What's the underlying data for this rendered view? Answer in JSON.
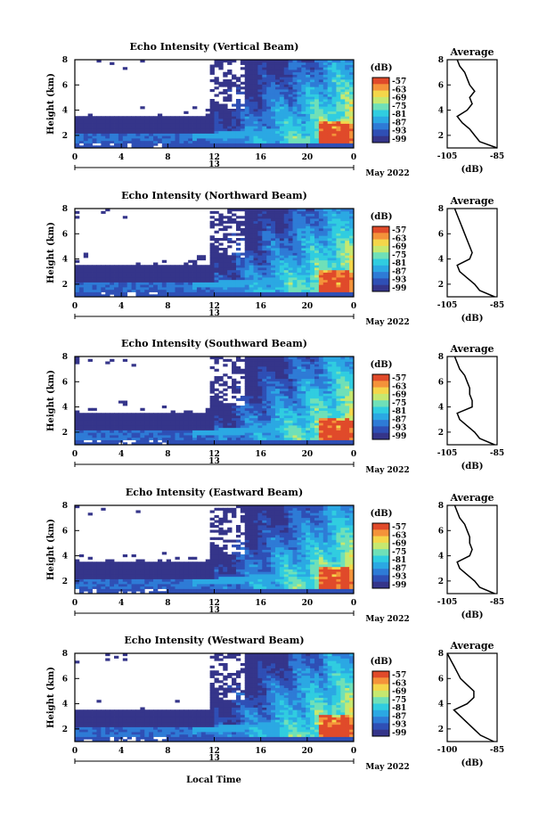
{
  "colors": {
    "scale": [
      "#35358a",
      "#2f4fb5",
      "#2e7bd6",
      "#2ba8e3",
      "#30cde0",
      "#6fe0b8",
      "#c6e870",
      "#f4d64a",
      "#f4933a",
      "#e04a2a"
    ],
    "missing": "#ffffff",
    "axis": "#000000"
  },
  "common": {
    "x_axis_label": "Local Time",
    "date_label": "May 2022",
    "day_label": "13",
    "ytick_labels": [
      "2",
      "4",
      "6",
      "8"
    ],
    "xtick_labels": [
      "0",
      "4",
      "8",
      "12",
      "16",
      "20",
      "0"
    ],
    "colorbar_unit": "(dB)",
    "colorbar_ticks": [
      "-57",
      "-63",
      "-69",
      "-75",
      "-81",
      "-87",
      "-93",
      "-99"
    ],
    "profile_title": "Average",
    "profile_xlabel": "(dB)",
    "ylabel": "Height (km)"
  },
  "chart_data": [
    {
      "type": "heatmap",
      "title": "Echo Intensity (Vertical Beam)",
      "xlabel": "",
      "ylabel": "Height (km)",
      "xlim_hours": [
        0,
        24
      ],
      "ylim_km": [
        1,
        8
      ],
      "zlim_db": [
        -99,
        -57
      ],
      "profile": {
        "type": "line",
        "xlim_db": [
          -105,
          -85
        ],
        "xtick_labels": [
          "-105",
          "-85"
        ],
        "height_km": [
          1.0,
          1.5,
          2.0,
          2.5,
          3.0,
          3.5,
          4.0,
          4.5,
          5.0,
          5.5,
          6.0,
          6.5,
          7.0,
          7.5,
          8.0
        ],
        "db": [
          -85,
          -92,
          -94,
          -96,
          -99,
          -101,
          -97,
          -95,
          -96,
          -94,
          -96,
          -97,
          -98,
          -100,
          -101
        ]
      }
    },
    {
      "type": "heatmap",
      "title": "Echo Intensity (Northward Beam)",
      "xlabel": "",
      "ylabel": "Height (km)",
      "xlim_hours": [
        0,
        24
      ],
      "ylim_km": [
        1,
        8
      ],
      "zlim_db": [
        -99,
        -57
      ],
      "profile": {
        "type": "line",
        "xlim_db": [
          -105,
          -85
        ],
        "xtick_labels": [
          "-105",
          "-85"
        ],
        "height_km": [
          1.0,
          1.5,
          2.0,
          2.5,
          3.0,
          3.5,
          4.0,
          4.5,
          5.0,
          5.5,
          6.0,
          6.5,
          7.0,
          7.5,
          8.0
        ],
        "db": [
          -86,
          -92,
          -94,
          -97,
          -100,
          -101,
          -96,
          -95,
          -96,
          -97,
          -98,
          -99,
          -100,
          -101,
          -102
        ]
      }
    },
    {
      "type": "heatmap",
      "title": "Echo Intensity (Southward Beam)",
      "xlabel": "",
      "ylabel": "Height (km)",
      "xlim_hours": [
        0,
        24
      ],
      "ylim_km": [
        1,
        8
      ],
      "zlim_db": [
        -99,
        -57
      ],
      "profile": {
        "type": "line",
        "xlim_db": [
          -105,
          -85
        ],
        "xtick_labels": [
          "-105",
          "-85"
        ],
        "height_km": [
          1.0,
          1.5,
          2.0,
          2.5,
          3.0,
          3.5,
          4.0,
          4.5,
          5.0,
          5.5,
          6.0,
          6.5,
          7.0,
          7.5,
          8.0
        ],
        "db": [
          -86,
          -92,
          -94,
          -97,
          -100,
          -101,
          -95,
          -95,
          -96,
          -96,
          -97,
          -98,
          -100,
          -101,
          -102
        ]
      }
    },
    {
      "type": "heatmap",
      "title": "Echo Intensity (Eastward Beam)",
      "xlabel": "",
      "ylabel": "Height (km)",
      "xlim_hours": [
        0,
        24
      ],
      "ylim_km": [
        1,
        8
      ],
      "zlim_db": [
        -99,
        -57
      ],
      "profile": {
        "type": "line",
        "xlim_db": [
          -105,
          -85
        ],
        "xtick_labels": [
          "-105",
          "-85"
        ],
        "height_km": [
          1.0,
          1.5,
          2.0,
          2.5,
          3.0,
          3.5,
          4.0,
          4.5,
          5.0,
          5.5,
          6.0,
          6.5,
          7.0,
          7.5,
          8.0
        ],
        "db": [
          -86,
          -92,
          -94,
          -97,
          -100,
          -101,
          -96,
          -95,
          -96,
          -96,
          -97,
          -98,
          -100,
          -101,
          -102
        ]
      }
    },
    {
      "type": "heatmap",
      "title": "Echo Intensity (Westward Beam)",
      "xlabel": "Local Time",
      "ylabel": "Height (km)",
      "xlim_hours": [
        0,
        24
      ],
      "ylim_km": [
        1,
        8
      ],
      "zlim_db": [
        -99,
        -57
      ],
      "profile": {
        "type": "line",
        "xlim_db": [
          -100,
          -85
        ],
        "xtick_labels": [
          "-100",
          "-85"
        ],
        "height_km": [
          1.0,
          1.5,
          2.0,
          2.5,
          3.0,
          3.5,
          4.0,
          4.5,
          5.0,
          5.5,
          6.0,
          6.5,
          7.0,
          7.5,
          8.0
        ],
        "db": [
          -86,
          -90,
          -92,
          -94,
          -96,
          -98,
          -94,
          -92,
          -92,
          -94,
          -96,
          -97,
          -98,
          -99,
          -100
        ]
      }
    }
  ]
}
